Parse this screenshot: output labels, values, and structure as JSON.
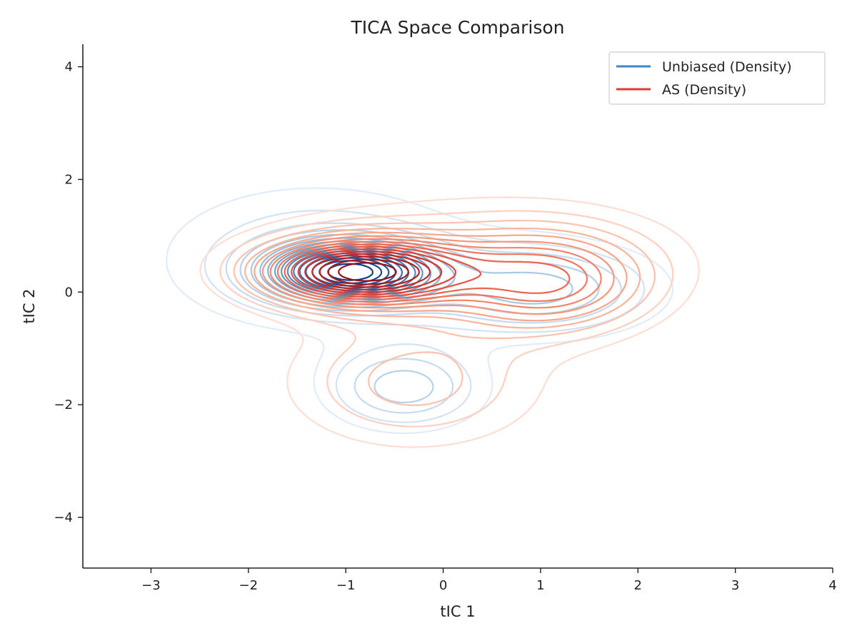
{
  "chart_data": {
    "type": "contour",
    "title": "TICA Space Comparison",
    "xlabel": "tIC 1",
    "ylabel": "tIC 2",
    "xlim": [
      -3.7,
      4.0
    ],
    "ylim": [
      -4.9,
      4.4
    ],
    "xticks": [
      -3,
      -2,
      -1,
      0,
      1,
      2,
      3,
      4
    ],
    "yticks": [
      -4,
      -2,
      0,
      2,
      4
    ],
    "xtick_labels": [
      "−3",
      "−2",
      "−1",
      "0",
      "1",
      "2",
      "3",
      "4"
    ],
    "ytick_labels": [
      "−4",
      "−2",
      "0",
      "2",
      "4"
    ],
    "grid": false,
    "legend_position": "top-right",
    "series": [
      {
        "name": "Unbiased (Density)",
        "color": "#3a87c2",
        "colormap": "Blues",
        "levels": 16,
        "components": [
          {
            "weight": 1.0,
            "mean": [
              -0.95,
              0.35
            ],
            "std": [
              0.55,
              0.35
            ]
          },
          {
            "weight": 0.35,
            "mean": [
              -0.4,
              -1.7
            ],
            "std": [
              0.55,
              0.5
            ]
          },
          {
            "weight": 0.4,
            "mean": [
              1.0,
              0.05
            ],
            "std": [
              0.8,
              0.55
            ]
          },
          {
            "weight": 0.25,
            "mean": [
              -1.3,
              0.6
            ],
            "std": [
              1.1,
              0.9
            ]
          }
        ]
      },
      {
        "name": "AS (Density)",
        "color": "#e33c32",
        "colormap": "Reds",
        "levels": 16,
        "components": [
          {
            "weight": 1.0,
            "mean": [
              -0.85,
              0.35
            ],
            "std": [
              0.7,
              0.4
            ]
          },
          {
            "weight": 0.5,
            "mean": [
              1.1,
              0.15
            ],
            "std": [
              0.7,
              0.6
            ]
          },
          {
            "weight": 0.25,
            "mean": [
              -0.3,
              -1.6
            ],
            "std": [
              0.9,
              0.8
            ]
          },
          {
            "weight": 0.2,
            "mean": [
              0.3,
              0.7
            ],
            "std": [
              1.4,
              0.7
            ]
          }
        ]
      }
    ]
  }
}
